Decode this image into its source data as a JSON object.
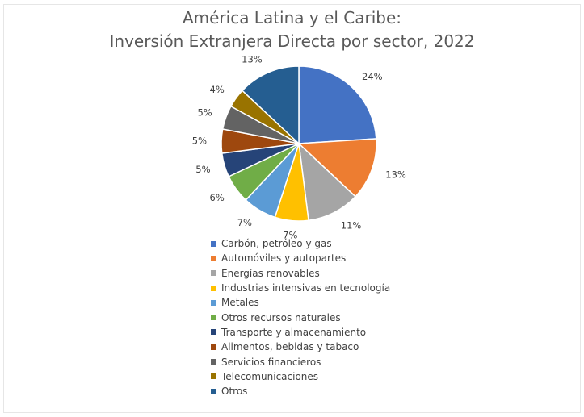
{
  "chart_data": {
    "type": "pie",
    "title_lines": [
      "América Latina y el Caribe:",
      "Inversión Extranjera Directa por sector, 2022"
    ],
    "unit": "%",
    "legend_position": "bottom",
    "slices": [
      {
        "label": "Carbón, petróleo y gas",
        "value": 24,
        "color": "#4472C4"
      },
      {
        "label": "Automóviles y autopartes",
        "value": 13,
        "color": "#ED7D31"
      },
      {
        "label": "Energías renovables",
        "value": 11,
        "color": "#A5A5A5"
      },
      {
        "label": "Industrias intensivas en tecnología",
        "value": 7,
        "color": "#FFC000"
      },
      {
        "label": "Metales",
        "value": 7,
        "color": "#5B9BD5"
      },
      {
        "label": "Otros recursos naturales",
        "value": 6,
        "color": "#70AD47"
      },
      {
        "label": "Transporte y almacenamiento",
        "value": 5,
        "color": "#264478"
      },
      {
        "label": "Alimentos, bebidas y tabaco",
        "value": 5,
        "color": "#9E480E"
      },
      {
        "label": "Servicios financieros",
        "value": 5,
        "color": "#636363"
      },
      {
        "label": "Telecomunicaciones",
        "value": 4,
        "color": "#997300"
      },
      {
        "label": "Otros",
        "value": 13,
        "color": "#255E91"
      }
    ]
  }
}
